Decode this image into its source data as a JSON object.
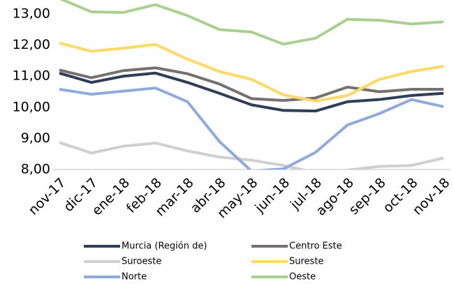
{
  "chart_data": {
    "type": "line",
    "categories": [
      "nov-17",
      "dic-17",
      "ene-18",
      "feb-18",
      "mar-18",
      "abr-18",
      "may-18",
      "jun-18",
      "jul-18",
      "ago-18",
      "sep-18",
      "oct-18",
      "nov-18"
    ],
    "series": [
      {
        "name": "Murcia (Región de)",
        "color": "#2f3e55",
        "values": [
          11.1,
          10.8,
          11.0,
          11.1,
          10.8,
          10.45,
          10.08,
          9.9,
          9.88,
          10.18,
          10.25,
          10.38,
          10.45
        ]
      },
      {
        "name": "Centro Este",
        "color": "#767171",
        "values": [
          11.2,
          10.95,
          11.18,
          11.27,
          11.08,
          10.75,
          10.28,
          10.22,
          10.3,
          10.65,
          10.5,
          10.58,
          10.58
        ]
      },
      {
        "name": "Suroeste",
        "color": "#d0cece",
        "values": [
          8.87,
          8.53,
          8.75,
          8.85,
          8.6,
          8.4,
          8.3,
          8.13,
          7.9,
          7.98,
          8.1,
          8.13,
          8.37
        ]
      },
      {
        "name": "Sureste",
        "color": "#ffd966",
        "values": [
          12.07,
          11.8,
          11.9,
          12.02,
          11.55,
          11.15,
          10.9,
          10.4,
          10.2,
          10.38,
          10.9,
          11.15,
          11.32
        ]
      },
      {
        "name": "Norte",
        "color": "#8faadc",
        "values": [
          10.58,
          10.42,
          10.52,
          10.62,
          10.18,
          8.9,
          7.95,
          8.02,
          8.55,
          9.43,
          9.8,
          10.25,
          10.02
        ]
      },
      {
        "name": "Oeste",
        "color": "#a9d18e",
        "values": [
          13.5,
          13.07,
          13.05,
          13.3,
          12.95,
          12.5,
          12.42,
          12.03,
          12.22,
          12.83,
          12.8,
          12.68,
          12.75
        ]
      }
    ],
    "ylim": [
      8,
      13.45
    ],
    "yticks": [
      {
        "value": 8,
        "label": "8,00"
      },
      {
        "value": 9,
        "label": "9,00"
      },
      {
        "value": 10,
        "label": "10,00"
      },
      {
        "value": 11,
        "label": "11,00"
      },
      {
        "value": 12,
        "label": "12,00"
      },
      {
        "value": 13,
        "label": "13,00"
      }
    ],
    "grid": false,
    "legend": "bottom"
  }
}
